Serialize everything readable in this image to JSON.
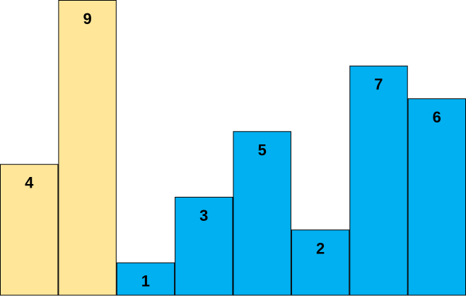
{
  "chart_data": {
    "type": "bar",
    "categories": [
      "",
      "",
      "",
      "",
      "",
      "",
      "",
      ""
    ],
    "values": [
      4,
      9,
      1,
      3,
      5,
      2,
      7,
      6
    ],
    "labels": [
      "4",
      "9",
      "1",
      "3",
      "5",
      "2",
      "7",
      "6"
    ],
    "bar_colors": [
      "#FFE699",
      "#FFE699",
      "#00B0F0",
      "#00B0F0",
      "#00B0F0",
      "#00B0F0",
      "#00B0F0",
      "#00B0F0"
    ],
    "border_color": "#000000",
    "ylim": [
      0,
      9
    ],
    "grid": false,
    "legend": "none",
    "axes_visible": false
  }
}
